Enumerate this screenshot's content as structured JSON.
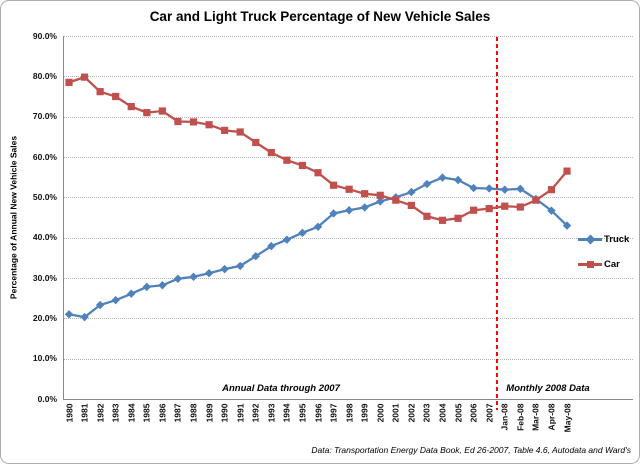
{
  "chart_data": {
    "type": "line",
    "title": "Car and Light Truck Percentage of New Vehicle Sales",
    "xlabel": "",
    "ylabel": "Percentage of Annual New Vehicle Sales",
    "ylim": [
      0,
      90
    ],
    "ytick_step": 10,
    "ytick_labels": [
      "90.0%",
      "80.0%",
      "70.0%",
      "60.0%",
      "50.0%",
      "40.0%",
      "30.0%",
      "20.0%",
      "10.0%",
      "0.0%"
    ],
    "grid": "horizontal-dotted",
    "legend_position": "right",
    "categories": [
      "1980",
      "1981",
      "1982",
      "1983",
      "1984",
      "1985",
      "1986",
      "1987",
      "1988",
      "1989",
      "1990",
      "1991",
      "1992",
      "1993",
      "1994",
      "1995",
      "1996",
      "1997",
      "1998",
      "1999",
      "2000",
      "2001",
      "2002",
      "2003",
      "2004",
      "2005",
      "2006",
      "2007",
      "Jan-08",
      "Feb-08",
      "Mar-08",
      "Apr-08",
      "May-08"
    ],
    "series": [
      {
        "name": "Truck",
        "marker": "diamond",
        "color": "#4F81BD",
        "values": [
          21.0,
          20.3,
          23.3,
          24.5,
          26.1,
          27.8,
          28.2,
          29.8,
          30.3,
          31.2,
          32.2,
          33.0,
          35.4,
          37.9,
          39.5,
          41.2,
          42.7,
          46.0,
          46.8,
          47.5,
          49.0,
          50.0,
          51.3,
          53.3,
          54.9,
          54.3,
          52.3,
          52.2,
          51.9,
          52.1,
          49.6,
          46.7,
          43.0
        ]
      },
      {
        "name": "Car",
        "marker": "square",
        "color": "#C0504D",
        "values": [
          78.5,
          79.8,
          76.2,
          75.0,
          72.5,
          71.0,
          71.4,
          68.8,
          68.7,
          68.0,
          66.6,
          66.2,
          63.6,
          61.1,
          59.2,
          57.9,
          56.1,
          53.0,
          52.0,
          50.9,
          50.5,
          49.3,
          48.0,
          45.3,
          44.3,
          44.8,
          46.8,
          47.2,
          47.8,
          47.6,
          49.3,
          51.9,
          56.5
        ]
      }
    ],
    "annotations": [
      {
        "text": "Annual Data through 2007",
        "position": "bottom-left-of-separator"
      },
      {
        "text": "Monthly 2008 Data",
        "position": "bottom-right-of-separator"
      }
    ],
    "separator_line": {
      "between": [
        "2007",
        "Jan-08"
      ],
      "style": "dashed",
      "color": "#FF0000"
    }
  },
  "footer": {
    "source_note": "Data: Transportation Energy Data Book, Ed 26-2007, Table 4.6,  Autodata and Ward's"
  }
}
